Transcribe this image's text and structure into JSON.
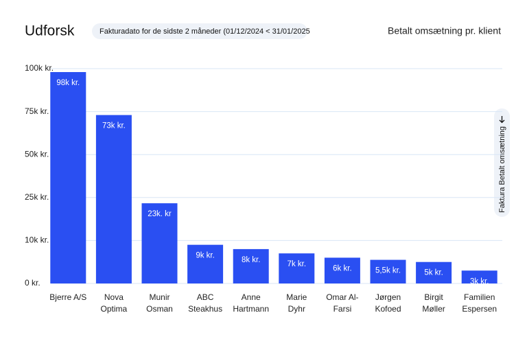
{
  "header": {
    "title": "Udforsk",
    "filter": "Fakturadato for de sidste 2 måneder (01/12/2024 < 31/01/2025",
    "view": "Betalt omsætning pr. klient",
    "sort": "Faktura Betalt omsætning"
  },
  "chart_data": {
    "type": "bar",
    "categories": [
      [
        "Bjerre A/S"
      ],
      [
        "Nova",
        "Optima"
      ],
      [
        "Munir",
        "Osman"
      ],
      [
        "ABC",
        "Steakhus"
      ],
      [
        "Anne",
        "Hartmann"
      ],
      [
        "Marie",
        "Dyhr"
      ],
      [
        "Omar Al-",
        "Farsi"
      ],
      [
        "Jørgen",
        "Kofoed"
      ],
      [
        "Birgit",
        "Møller"
      ],
      [
        "Familien",
        "Espersen"
      ]
    ],
    "values": [
      98000,
      73000,
      23000,
      9000,
      8000,
      7000,
      6000,
      5500,
      5000,
      3000
    ],
    "value_labels": [
      "98k kr.",
      "73k kr.",
      "23k. kr",
      "9k kr.",
      "8k kr.",
      "7k kr.",
      "6k kr.",
      "5,5k kr.",
      "5k kr.",
      "3k kr."
    ],
    "color": "#2a4ff2",
    "ylim": [
      0,
      100000
    ],
    "yticks": [
      {
        "value": 0,
        "label": "0 kr."
      },
      {
        "value": 10000,
        "label": "10k kr."
      },
      {
        "value": 25000,
        "label": "25k kr."
      },
      {
        "value": 50000,
        "label": "50k kr."
      },
      {
        "value": 75000,
        "label": "75k kr."
      },
      {
        "value": 100000,
        "label": "100k kr."
      }
    ],
    "grid": true
  }
}
